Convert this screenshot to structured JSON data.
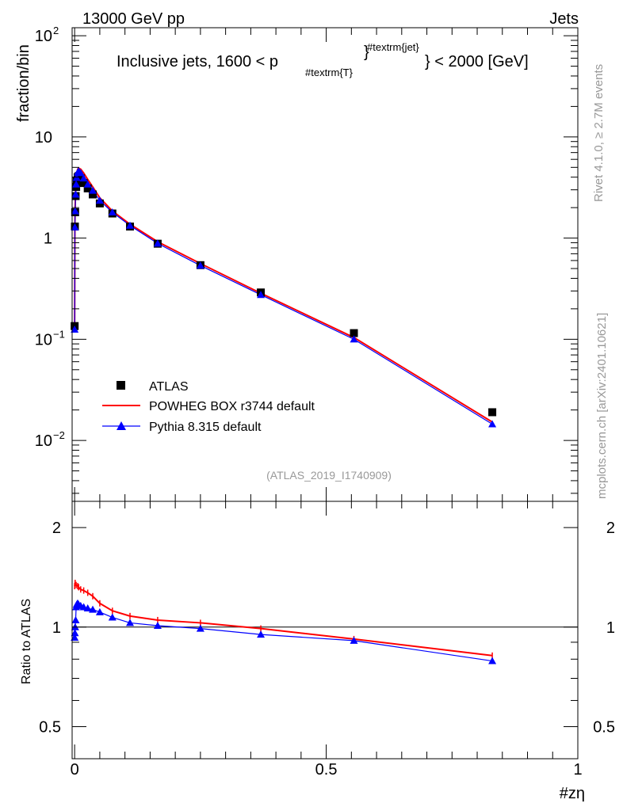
{
  "header": {
    "energy_label": "13000 GeV pp",
    "category_label": "Jets"
  },
  "plot_title": {
    "main": "Inclusive jets, 1600 < p",
    "sub": "#textrm{T}",
    "sup": "#textrm{jet}",
    "tail": "} < 2000 [GeV]"
  },
  "side_labels": {
    "rivet": "Rivet 4.1.0, ≥ 2.7M events",
    "mcplots": "mcplots.cern.ch [arXiv:2401.10621]"
  },
  "analysis_id": "(ATLAS_2019_I1740909)",
  "legend": {
    "data": "ATLAS",
    "powheg": "POWHEG BOX r3744 default",
    "pythia": "Pythia 8.315 default"
  },
  "colors": {
    "data": "#000000",
    "powheg": "#ff0000",
    "pythia": "#0000ff"
  },
  "chart_data": [
    {
      "type": "scatter",
      "panel": "main",
      "ylabel": "fraction/bin",
      "yscale": "log",
      "ylim": [
        0.0025,
        120
      ],
      "xlim": [
        -0.005,
        1.0
      ],
      "yticks": [
        {
          "v": 100,
          "base": "10",
          "exp": "2"
        },
        {
          "v": 10,
          "base": "10",
          "exp": ""
        },
        {
          "v": 1,
          "base": "1",
          "exp": ""
        },
        {
          "v": 0.1,
          "base": "10",
          "exp": "−1"
        },
        {
          "v": 0.01,
          "base": "10",
          "exp": "−2"
        }
      ],
      "series": [
        {
          "name": "ATLAS",
          "x": [
            0.0,
            0.0005,
            0.001,
            0.002,
            0.003,
            0.004,
            0.006,
            0.008,
            0.012,
            0.018,
            0.026,
            0.036,
            0.05,
            0.075,
            0.11,
            0.165,
            0.25,
            0.37,
            0.555,
            0.83
          ],
          "y": [
            0.135,
            1.3,
            1.8,
            2.6,
            3.2,
            3.7,
            4.0,
            4.1,
            3.9,
            3.5,
            3.1,
            2.7,
            2.2,
            1.75,
            1.3,
            0.88,
            0.54,
            0.29,
            0.115,
            0.019
          ]
        },
        {
          "name": "POWHEG BOX r3744 default",
          "x": [
            0.0,
            0.0005,
            0.001,
            0.002,
            0.003,
            0.004,
            0.006,
            0.008,
            0.012,
            0.018,
            0.026,
            0.036,
            0.05,
            0.075,
            0.11,
            0.165,
            0.25,
            0.37,
            0.555,
            0.83
          ],
          "y": [
            0.13,
            1.35,
            2.0,
            3.0,
            3.8,
            4.3,
            4.8,
            4.9,
            4.8,
            4.4,
            3.8,
            3.2,
            2.5,
            1.85,
            1.37,
            0.92,
            0.56,
            0.285,
            0.104,
            0.0152
          ]
        },
        {
          "name": "Pythia 8.315 default",
          "x": [
            0.0,
            0.0005,
            0.001,
            0.002,
            0.003,
            0.004,
            0.006,
            0.008,
            0.012,
            0.018,
            0.026,
            0.036,
            0.05,
            0.075,
            0.11,
            0.165,
            0.25,
            0.37,
            0.555,
            0.83
          ],
          "y": [
            0.125,
            1.28,
            1.85,
            2.7,
            3.4,
            3.95,
            4.45,
            4.6,
            4.4,
            3.9,
            3.4,
            2.95,
            2.35,
            1.8,
            1.33,
            0.885,
            0.535,
            0.275,
            0.1,
            0.0145
          ]
        }
      ]
    },
    {
      "type": "line",
      "panel": "ratio",
      "ylabel": "Ratio to ATLAS",
      "xlabel": "#zη",
      "yscale": "log",
      "ylim": [
        0.4,
        2.4
      ],
      "xlim": [
        -0.005,
        1.0
      ],
      "yticks": [
        {
          "v": 2,
          "label": "2"
        },
        {
          "v": 1,
          "label": "1"
        },
        {
          "v": 0.5,
          "label": "0.5"
        }
      ],
      "xticks": [
        {
          "v": 0,
          "label": "0"
        },
        {
          "v": 0.5,
          "label": "0.5"
        },
        {
          "v": 1,
          "label": "1"
        }
      ],
      "reference": 1,
      "series": [
        {
          "name": "POWHEG BOX r3744 default",
          "x": [
            0.0,
            0.001,
            0.003,
            0.006,
            0.008,
            0.012,
            0.018,
            0.026,
            0.036,
            0.05,
            0.075,
            0.11,
            0.165,
            0.25,
            0.37,
            0.555,
            0.83
          ],
          "y": [
            1.33,
            1.36,
            1.34,
            1.33,
            1.32,
            1.3,
            1.29,
            1.27,
            1.24,
            1.18,
            1.12,
            1.08,
            1.05,
            1.03,
            0.99,
            0.92,
            0.82
          ]
        },
        {
          "name": "Pythia 8.315 default",
          "x": [
            0.0,
            0.0005,
            0.001,
            0.002,
            0.003,
            0.004,
            0.006,
            0.008,
            0.012,
            0.018,
            0.026,
            0.036,
            0.05,
            0.075,
            0.11,
            0.165,
            0.25,
            0.37,
            0.555,
            0.83
          ],
          "y": [
            0.93,
            0.96,
            1.0,
            1.05,
            1.15,
            1.17,
            1.18,
            1.17,
            1.16,
            1.15,
            1.14,
            1.13,
            1.11,
            1.07,
            1.03,
            1.01,
            0.99,
            0.95,
            0.91,
            0.79
          ]
        }
      ]
    }
  ]
}
